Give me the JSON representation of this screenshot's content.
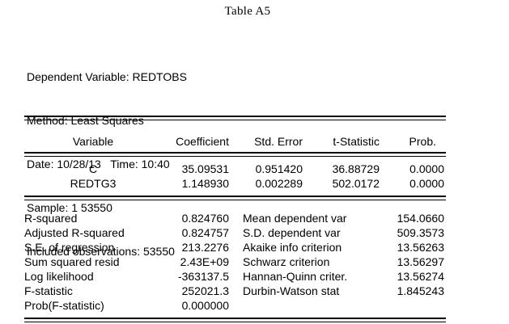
{
  "page": {
    "title": "Table A5"
  },
  "colors": {
    "background": "#ffffff",
    "text": "#000000",
    "rule": "#000000"
  },
  "header_info": {
    "lines": [
      "Dependent Variable: REDTOBS",
      "Method: Least Squares",
      "Date: 10/28/13   Time: 10:40",
      "Sample: 1 53550",
      "Included observations: 53550"
    ]
  },
  "coefficient_table": {
    "columns": [
      "Variable",
      "Coefficient",
      "Std. Error",
      "t-Statistic",
      "Prob."
    ],
    "rows": [
      {
        "variable": "C",
        "coefficient": "35.09531",
        "std_error": "0.951420",
        "t_statistic": "36.88729",
        "prob": "0.0000"
      },
      {
        "variable": "REDTG3",
        "coefficient": "1.148930",
        "std_error": "0.002289",
        "t_statistic": "502.0172",
        "prob": "0.0000"
      }
    ]
  },
  "statistics": {
    "left": [
      {
        "label": "R-squared",
        "value": "0.824760"
      },
      {
        "label": "Adjusted R-squared",
        "value": "0.824757"
      },
      {
        "label": "S.E. of regression",
        "value": "213.2276"
      },
      {
        "label": "Sum squared resid",
        "value": "2.43E+09"
      },
      {
        "label": "Log likelihood",
        "value": "-363137.5"
      },
      {
        "label": "F-statistic",
        "value": "252021.3"
      },
      {
        "label": "Prob(F-statistic)",
        "value": "0.000000"
      }
    ],
    "right": [
      {
        "label": "Mean dependent var",
        "value": "154.0660"
      },
      {
        "label": "S.D. dependent var",
        "value": "509.3573"
      },
      {
        "label": "Akaike info criterion",
        "value": "13.56263"
      },
      {
        "label": "Schwarz criterion",
        "value": "13.56297"
      },
      {
        "label": "Hannan-Quinn criter.",
        "value": "13.56274"
      },
      {
        "label": "Durbin-Watson stat",
        "value": "1.845243"
      }
    ]
  }
}
